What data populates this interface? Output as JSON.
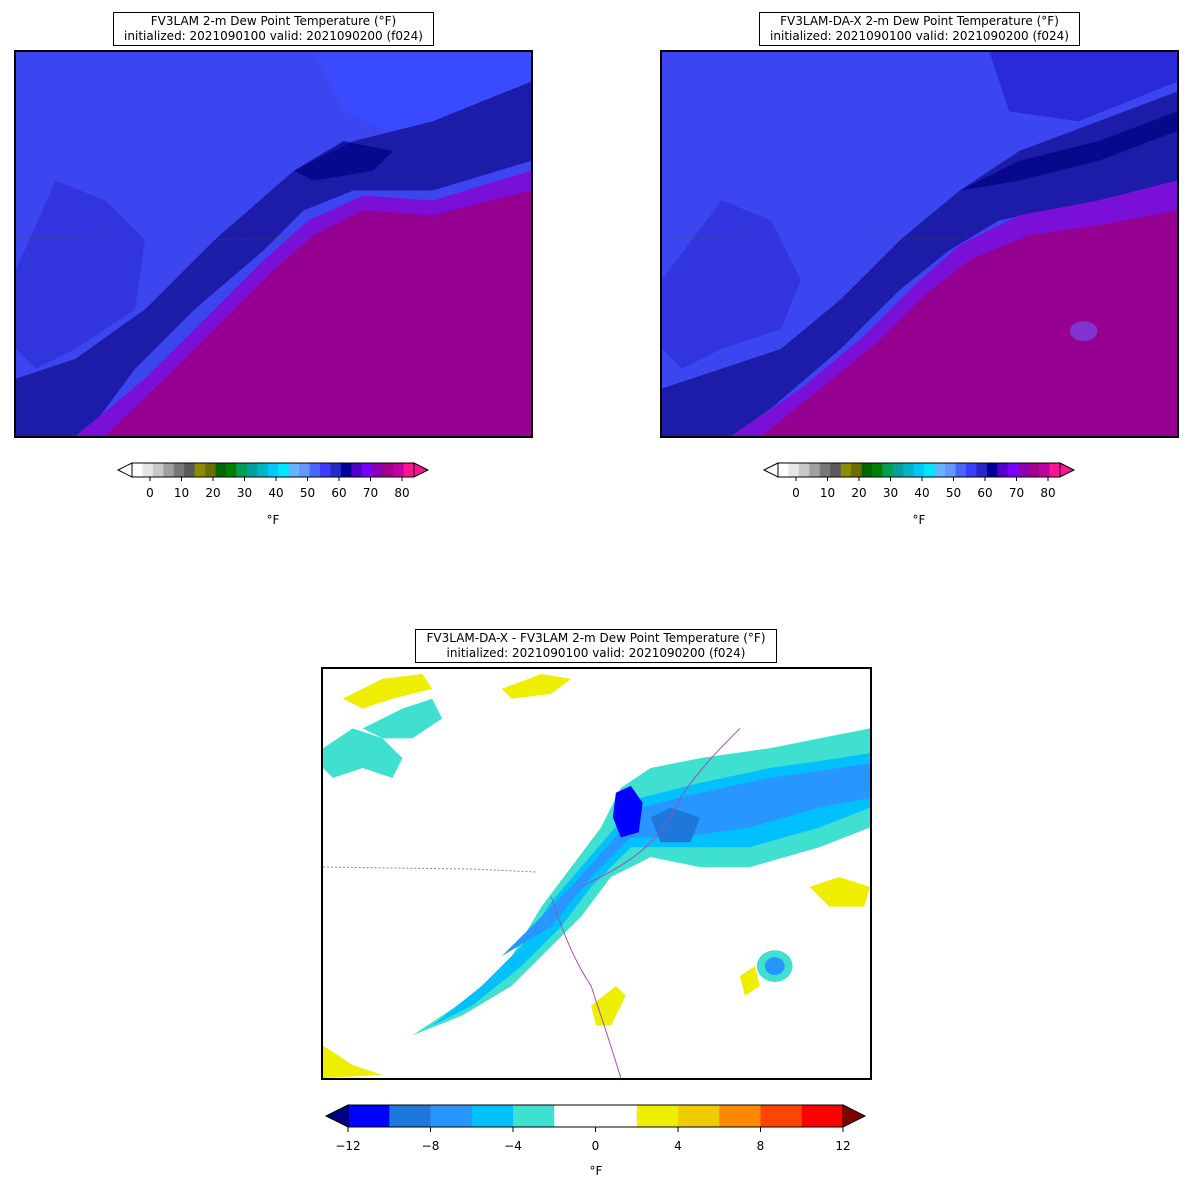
{
  "panels": [
    {
      "title_line1": "FV3LAM 2-m Dew Point Temperature (°F)",
      "title_line2": "initialized: 2021090100 valid: 2021090200 (f024)",
      "colorbar": {
        "ticks": [
          "0",
          "10",
          "20",
          "30",
          "40",
          "50",
          "60",
          "70",
          "80"
        ],
        "unit": "°F"
      }
    },
    {
      "title_line1": "FV3LAM-DA-X 2-m Dew Point Temperature (°F)",
      "title_line2": "initialized: 2021090100 valid: 2021090200 (f024)",
      "colorbar": {
        "ticks": [
          "0",
          "10",
          "20",
          "30",
          "40",
          "50",
          "60",
          "70",
          "80"
        ],
        "unit": "°F"
      }
    },
    {
      "title_line1": "FV3LAM-DA-X - FV3LAM 2-m Dew Point Temperature (°F)",
      "title_line2": "initialized: 2021090100 valid: 2021090200 (f024)",
      "colorbar": {
        "ticks": [
          "−12",
          "−8",
          "−4",
          "0",
          "4",
          "8",
          "12"
        ],
        "unit": "°F"
      }
    }
  ],
  "colors": {
    "dewpoint_scale": [
      "#ffffff",
      "#e6e6e6",
      "#c8c8c8",
      "#a0a0a0",
      "#787878",
      "#5a5a5a",
      "#8c8c00",
      "#6e6e00",
      "#006400",
      "#008000",
      "#00a050",
      "#00a0a0",
      "#00b4c8",
      "#00c8ff",
      "#00e6ff",
      "#64b4ff",
      "#6496ff",
      "#4b64ff",
      "#3c3cff",
      "#2828c8",
      "#000096",
      "#5000c8",
      "#7800ff",
      "#8c00b4",
      "#a0008c",
      "#be00a0",
      "#ff1493"
    ],
    "diff_scale": [
      "#0000ff",
      "#1e78dc",
      "#2896ff",
      "#00c0ff",
      "#40e0d0",
      "#ffffff",
      "#ffffff",
      "#eeee00",
      "#eecc00",
      "#ff8800",
      "#ff4400",
      "#ff0000"
    ],
    "diff_under": "#000080",
    "diff_over": "#800000"
  }
}
